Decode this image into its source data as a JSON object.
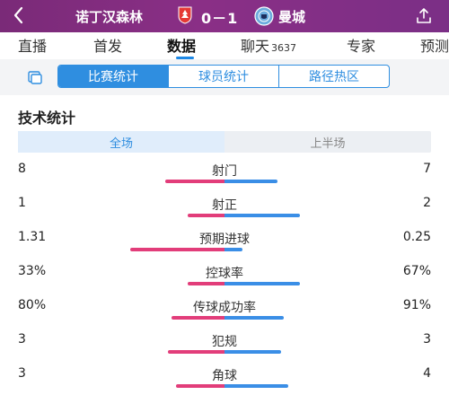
{
  "header": {
    "back_icon": "chevron-left-icon",
    "home_team": "诺丁汉森林",
    "away_team": "曼城",
    "score": "0－1",
    "home_crest": "nottingham-forest-crest",
    "away_crest": "manchester-city-crest",
    "share_icon": "share-icon",
    "bg_color": "#7a2a78"
  },
  "tabs": [
    {
      "label": "直播",
      "active": false
    },
    {
      "label": "首发",
      "active": false
    },
    {
      "label": "数据",
      "active": true
    },
    {
      "label": "聊天",
      "count": "3637",
      "active": false
    },
    {
      "label": "专家",
      "active": false
    },
    {
      "label": "预测",
      "active": false
    }
  ],
  "subtabs": {
    "icon": "layout-icon",
    "items": [
      {
        "label": "比赛统计",
        "active": true
      },
      {
        "label": "球员统计",
        "active": false
      },
      {
        "label": "路径热区",
        "active": false
      }
    ]
  },
  "section": {
    "title": "技术统计",
    "periods": [
      {
        "label": "全场",
        "active": true
      },
      {
        "label": "上半场",
        "active": false
      }
    ]
  },
  "colors": {
    "home": "#e23d7a",
    "away": "#3a8ee6",
    "accent": "#2f8ee0"
  },
  "stats": [
    {
      "name": "射门",
      "home": "8",
      "away": "7",
      "home_share": 0.53,
      "away_share": 0.47
    },
    {
      "name": "射正",
      "home": "1",
      "away": "2",
      "home_share": 0.33,
      "away_share": 0.67
    },
    {
      "name": "预期进球",
      "home": "1.31",
      "away": "0.25",
      "home_share": 0.84,
      "away_share": 0.16
    },
    {
      "name": "控球率",
      "home": "33%",
      "away": "67%",
      "home_share": 0.33,
      "away_share": 0.67
    },
    {
      "name": "传球成功率",
      "home": "80%",
      "away": "91%",
      "home_share": 0.47,
      "away_share": 0.53
    },
    {
      "name": "犯规",
      "home": "3",
      "away": "3",
      "home_share": 0.5,
      "away_share": 0.5
    },
    {
      "name": "角球",
      "home": "3",
      "away": "4",
      "home_share": 0.43,
      "away_share": 0.57
    }
  ]
}
